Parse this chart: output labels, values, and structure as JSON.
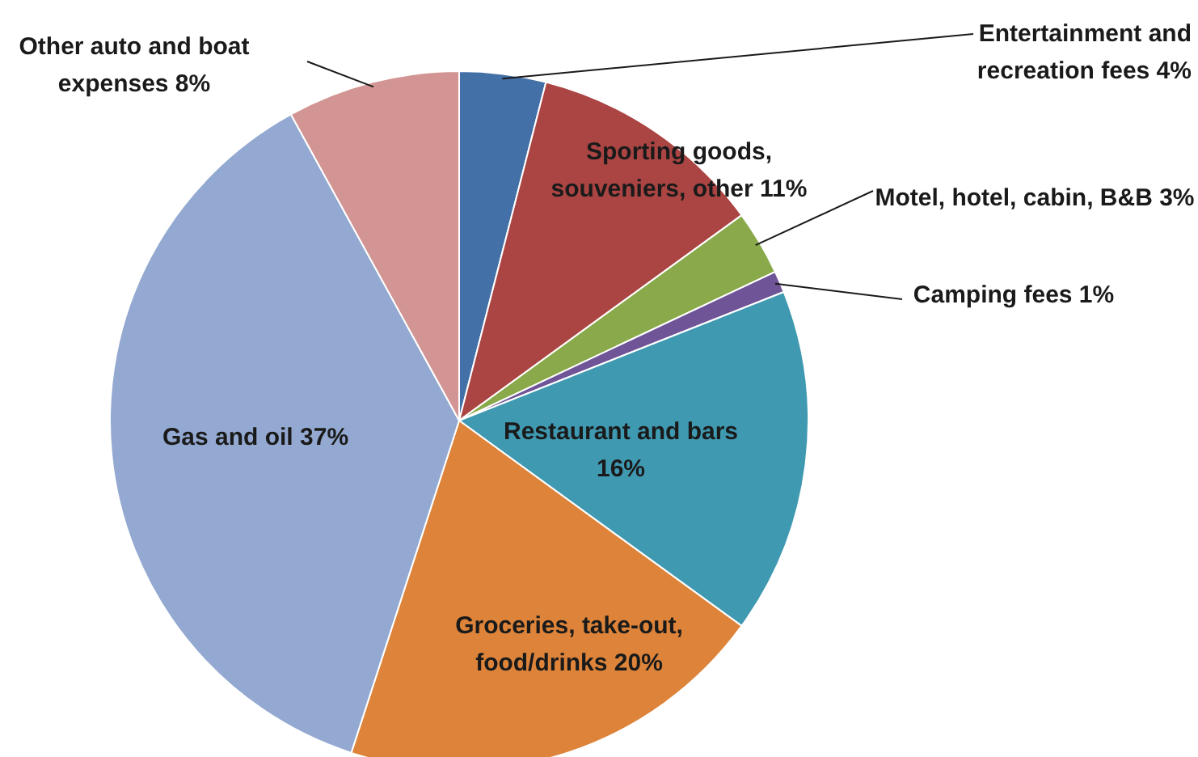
{
  "chart_data": {
    "type": "pie",
    "categories": [
      "Entertainment and recreation fees",
      "Sporting goods, souveniers, other",
      "Motel, hotel, cabin, B&B",
      "Camping fees",
      "Restaurant and bars",
      "Groceries, take-out, food/drinks",
      "Gas and oil",
      "Other auto and boat expenses"
    ],
    "values": [
      4,
      11,
      3,
      1,
      16,
      20,
      37,
      8
    ],
    "value_labels": [
      "4%",
      "11%",
      "3%",
      "1%",
      "16%",
      "20%",
      "37%",
      "8%"
    ],
    "colors": [
      "#4470a8",
      "#ab4543",
      "#89a94a",
      "#6f5597",
      "#3f99b1",
      "#dd843a",
      "#94a9d1",
      "#d29593"
    ],
    "legend": false
  }
}
